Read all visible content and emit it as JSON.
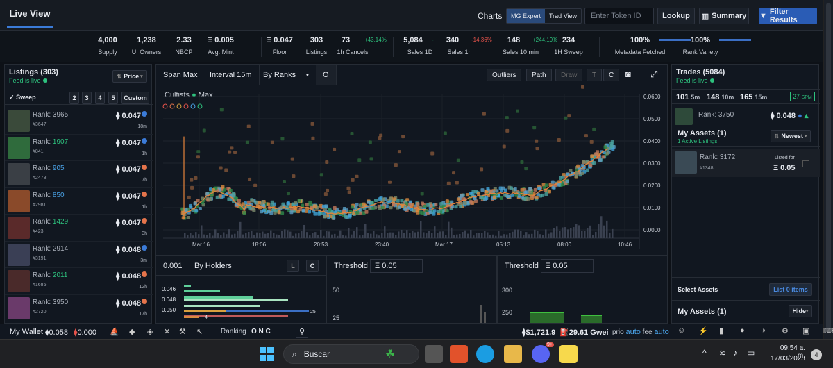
{
  "header": {
    "tab": "Live View",
    "charts_label": "Charts",
    "modes": [
      "MG Expert",
      "Trad View"
    ],
    "token_placeholder": "Enter Token ID",
    "lookup": "Lookup",
    "summary": "Summary",
    "filter": "Filter Results"
  },
  "stats": [
    {
      "v": "4,000",
      "l": "Supply"
    },
    {
      "v": "1,238",
      "l": "U. Owners"
    },
    {
      "v": "2.33",
      "l": "NBCP"
    },
    {
      "v": "Ξ 0.005",
      "l": "Avg. Mint"
    },
    {
      "v": "Ξ 0.047",
      "l": "Floor"
    },
    {
      "v": "303",
      "l": "Listings"
    },
    {
      "v": "73",
      "l": "1h Cancels",
      "d": "+43.14%",
      "dc": "g"
    },
    {
      "v": "5,084",
      "l": "Sales 1D",
      "d": "-",
      "dc": "g"
    },
    {
      "v": "340",
      "l": "Sales 1h",
      "d": "-14.36%",
      "dc": "r"
    },
    {
      "v": "148",
      "l": "Sales 10 min",
      "d": "+244.19%",
      "dc": "g"
    },
    {
      "v": "234",
      "l": "1H Sweep"
    },
    {
      "v": "100%",
      "l": "Metadata Fetched",
      "bar": true
    },
    {
      "v": "100%",
      "l": "Rank Variety",
      "bar": true
    }
  ],
  "listings": {
    "title": "Listings (303)",
    "live": "Feed is live",
    "sort": "Price",
    "sweep": "Sweep",
    "sweep_opts": [
      "2",
      "3",
      "4",
      "5"
    ],
    "custom": "Custom",
    "items": [
      {
        "rank": "3965",
        "id": "#3647",
        "price": "0.047",
        "age": "18m",
        "rc": "#aab0ba",
        "img": "#3a4a3a",
        "icon": "#3b7bd8"
      },
      {
        "rank": "1907",
        "id": "#841",
        "price": "0.047",
        "age": "1h",
        "rc": "#2ec27e",
        "img": "#2f6b3c",
        "icon": "#3b7bd8"
      },
      {
        "rank": "905",
        "id": "#2478",
        "price": "0.047",
        "age": "7h",
        "rc": "#4aa3e8",
        "img": "#3a3f45",
        "icon": "#e5744b"
      },
      {
        "rank": "850",
        "id": "#2981",
        "price": "0.047",
        "age": "1h",
        "rc": "#4aa3e8",
        "img": "#8a4a2a",
        "icon": "#e5744b"
      },
      {
        "rank": "1429",
        "id": "#423",
        "price": "0.047",
        "age": "3h",
        "rc": "#2ec27e",
        "img": "#5a2a2a",
        "icon": "#e5744b"
      },
      {
        "rank": "2914",
        "id": "#3191",
        "price": "0.048",
        "age": "3m",
        "rc": "#aab0ba",
        "img": "#3a3f55",
        "icon": "#3b7bd8"
      },
      {
        "rank": "2011",
        "id": "#1686",
        "price": "0.048",
        "age": "12h",
        "rc": "#2ec27e",
        "img": "#4a2a2a",
        "icon": "#e5744b"
      },
      {
        "rank": "3950",
        "id": "#2720",
        "price": "0.048",
        "age": "17h",
        "rc": "#aab0ba",
        "img": "#6a3a6a",
        "icon": "#e5744b"
      }
    ]
  },
  "chart_toolbar": {
    "span": "Span Max",
    "interval": "Interval 15m",
    "by": "By Ranks",
    "dot": "•",
    "o": "O",
    "outliers": "Outliers",
    "path": "Path",
    "draw": "Draw",
    "t": "T",
    "c": "C"
  },
  "chart_data": {
    "type": "scatter",
    "legend_title": "Cultists",
    "legend_series": "Max",
    "y_ticks": [
      "0.0600",
      "0.0500",
      "0.0400",
      "0.0300",
      "0.0200",
      "0.0100",
      "0.0000"
    ],
    "x_ticks": [
      "Mar 16",
      "18:06",
      "20:53",
      "23:40",
      "Mar 17",
      "05:13",
      "08:00",
      "10:46"
    ],
    "ylim": [
      0,
      0.06
    ]
  },
  "trades": {
    "title": "Trades (5084)",
    "live": "Feed is live",
    "tf": [
      {
        "v": "101",
        "u": "5m"
      },
      {
        "v": "148",
        "u": "10m"
      },
      {
        "v": "165",
        "u": "15m"
      }
    ],
    "spm": "27",
    "spm_u": "SPM",
    "top": {
      "rank": "3750",
      "price": "0.048"
    },
    "assets_title": "My Assets (1)",
    "active": "1 Active Listings",
    "newest": "Newest",
    "asset": {
      "rank": "3172",
      "id": "#1348",
      "listed": "Listed for",
      "price": "Ξ 0.05"
    },
    "select": "Select Assets",
    "list0": "List 0 items",
    "assets2": "My Assets (1)",
    "hide": "Hide"
  },
  "bottom": {
    "left": {
      "v": "0.001",
      "by": "By Holders",
      "l": "L",
      "c": "C",
      "rows": [
        "0.046",
        "0.048",
        "0.050"
      ],
      "n1": "25",
      "n2": "4"
    },
    "mid": {
      "label": "Threshold",
      "val": "Ξ 0.05",
      "t1": "50",
      "t2": "25"
    },
    "right": {
      "label": "Threshold",
      "val": "Ξ 0.05",
      "t1": "300",
      "t2": "250"
    }
  },
  "status": {
    "wallet": "My Wallet",
    "eth": "0.058",
    "eth2": "0.000",
    "ranking": "Ranking",
    "rk": "O N C",
    "usd": "$1,721.9",
    "gwei": "29.61 Gwei",
    "prio": "prio",
    "prio_v": "auto",
    "fee": "fee",
    "fee_v": "auto"
  },
  "taskbar": {
    "search": "Buscar",
    "time": "09:54 a. m.",
    "date": "17/03/2023",
    "badge": "4",
    "discord_badge": "9+"
  }
}
